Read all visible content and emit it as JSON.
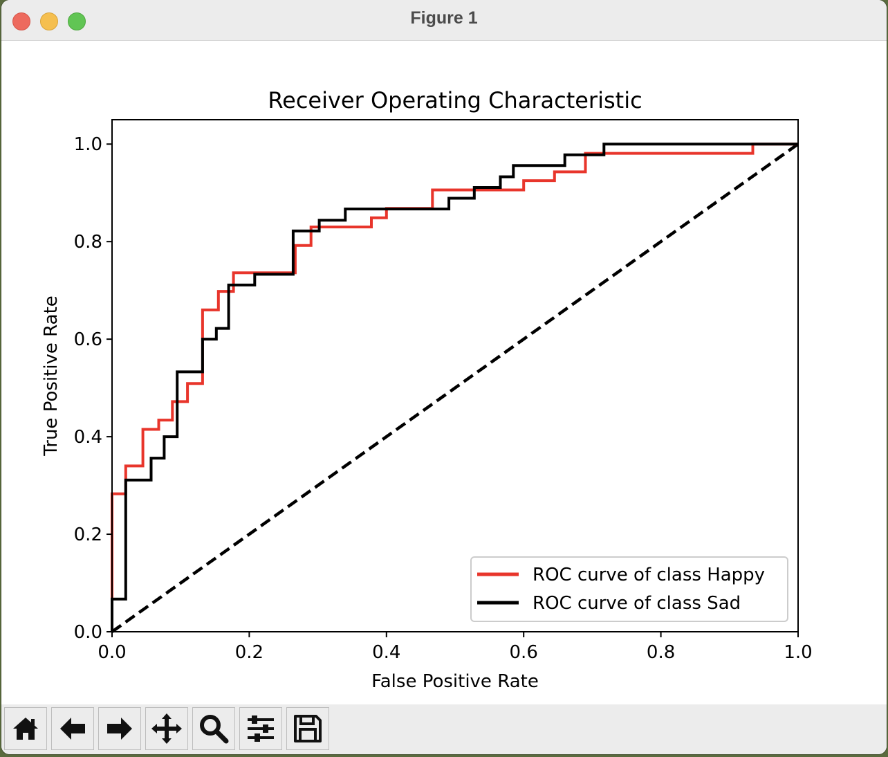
{
  "window": {
    "title": "Figure 1"
  },
  "toolbar": {
    "buttons": [
      {
        "name": "home-button",
        "icon": "home-icon"
      },
      {
        "name": "back-button",
        "icon": "arrow-left-icon"
      },
      {
        "name": "forward-button",
        "icon": "arrow-right-icon"
      },
      {
        "name": "pan-button",
        "icon": "move-icon"
      },
      {
        "name": "zoom-button",
        "icon": "zoom-icon"
      },
      {
        "name": "configure-subplots-button",
        "icon": "sliders-icon"
      },
      {
        "name": "save-button",
        "icon": "save-icon"
      }
    ]
  },
  "chart_data": {
    "type": "line",
    "title": "Receiver Operating Characteristic",
    "xlabel": "False Positive Rate",
    "ylabel": "True Positive Rate",
    "xlim": [
      0.0,
      1.0
    ],
    "ylim": [
      0.0,
      1.05
    ],
    "xticks": [
      "0.0",
      "0.2",
      "0.4",
      "0.6",
      "0.8",
      "1.0"
    ],
    "yticks": [
      "0.0",
      "0.2",
      "0.4",
      "0.6",
      "0.8",
      "1.0"
    ],
    "grid": false,
    "legend_position": "lower-right",
    "series": [
      {
        "name": "ROC curve of class Happy",
        "color": "#e8352b",
        "style": "step",
        "points": [
          [
            0,
            0
          ],
          [
            0,
            0.283
          ],
          [
            0.02,
            0.283
          ],
          [
            0.02,
            0.34
          ],
          [
            0.045,
            0.34
          ],
          [
            0.045,
            0.415
          ],
          [
            0.068,
            0.415
          ],
          [
            0.068,
            0.434
          ],
          [
            0.088,
            0.434
          ],
          [
            0.088,
            0.472
          ],
          [
            0.11,
            0.472
          ],
          [
            0.11,
            0.509
          ],
          [
            0.132,
            0.509
          ],
          [
            0.132,
            0.66
          ],
          [
            0.155,
            0.66
          ],
          [
            0.155,
            0.698
          ],
          [
            0.177,
            0.698
          ],
          [
            0.177,
            0.736
          ],
          [
            0.267,
            0.736
          ],
          [
            0.267,
            0.792
          ],
          [
            0.29,
            0.792
          ],
          [
            0.29,
            0.83
          ],
          [
            0.378,
            0.83
          ],
          [
            0.378,
            0.849
          ],
          [
            0.4,
            0.849
          ],
          [
            0.4,
            0.868
          ],
          [
            0.467,
            0.868
          ],
          [
            0.467,
            0.906
          ],
          [
            0.6,
            0.906
          ],
          [
            0.6,
            0.925
          ],
          [
            0.645,
            0.925
          ],
          [
            0.645,
            0.943
          ],
          [
            0.69,
            0.943
          ],
          [
            0.69,
            0.981
          ],
          [
            0.934,
            0.981
          ],
          [
            0.934,
            1.0
          ],
          [
            1.0,
            1.0
          ]
        ]
      },
      {
        "name": "ROC curve of class Sad",
        "color": "#000000",
        "style": "step",
        "points": [
          [
            0,
            0
          ],
          [
            0,
            0.067
          ],
          [
            0.02,
            0.067
          ],
          [
            0.02,
            0.311
          ],
          [
            0.057,
            0.311
          ],
          [
            0.057,
            0.356
          ],
          [
            0.076,
            0.356
          ],
          [
            0.076,
            0.4
          ],
          [
            0.095,
            0.4
          ],
          [
            0.095,
            0.533
          ],
          [
            0.132,
            0.533
          ],
          [
            0.132,
            0.6
          ],
          [
            0.152,
            0.6
          ],
          [
            0.152,
            0.622
          ],
          [
            0.17,
            0.622
          ],
          [
            0.17,
            0.711
          ],
          [
            0.208,
            0.711
          ],
          [
            0.208,
            0.733
          ],
          [
            0.264,
            0.733
          ],
          [
            0.264,
            0.822
          ],
          [
            0.302,
            0.822
          ],
          [
            0.302,
            0.844
          ],
          [
            0.34,
            0.844
          ],
          [
            0.34,
            0.867
          ],
          [
            0.491,
            0.867
          ],
          [
            0.491,
            0.889
          ],
          [
            0.528,
            0.889
          ],
          [
            0.528,
            0.911
          ],
          [
            0.566,
            0.911
          ],
          [
            0.566,
            0.933
          ],
          [
            0.585,
            0.933
          ],
          [
            0.585,
            0.956
          ],
          [
            0.66,
            0.956
          ],
          [
            0.66,
            0.978
          ],
          [
            0.717,
            0.978
          ],
          [
            0.717,
            1.0
          ],
          [
            1.0,
            1.0
          ]
        ]
      },
      {
        "name": "",
        "color": "#000000",
        "style": "dashed",
        "points": [
          [
            0,
            0
          ],
          [
            1,
            1
          ]
        ]
      }
    ]
  }
}
